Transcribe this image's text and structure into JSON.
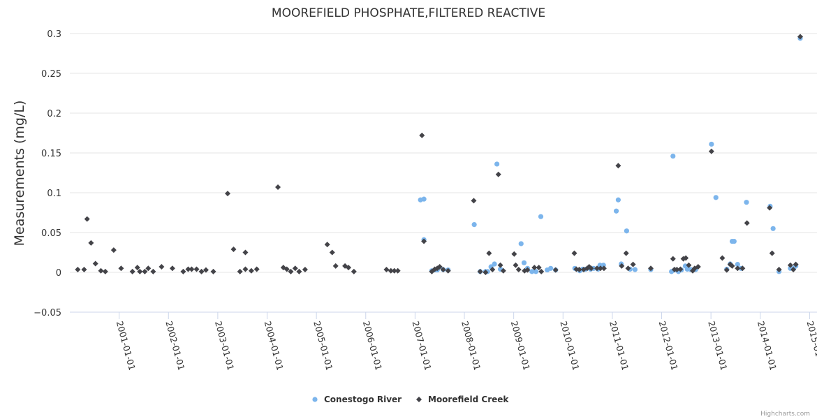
{
  "chart_data": {
    "type": "scatter",
    "title": "MOOREFIELD PHOSPHATE,FILTERED REACTIVE",
    "xlabel": "",
    "ylabel": "Measurements (mg/L)",
    "x_units": "decimal year",
    "xlim": [
      2000.0,
      2015.15
    ],
    "ylim": [
      -0.05,
      0.3
    ],
    "y_ticks": [
      -0.05,
      0,
      0.05,
      0.1,
      0.15,
      0.2,
      0.25,
      0.3
    ],
    "y_tick_labels": [
      "−0.05",
      "0",
      "0.05",
      "0.1",
      "0.15",
      "0.2",
      "0.25",
      "0.3"
    ],
    "x_ticks": [
      2001,
      2002,
      2003,
      2004,
      2005,
      2006,
      2007,
      2008,
      2009,
      2010,
      2011,
      2012,
      2013,
      2014,
      2015
    ],
    "x_tick_labels": [
      "2001-01-01",
      "2002-01-01",
      "2003-01-01",
      "2004-01-01",
      "2005-01-01",
      "2006-01-01",
      "2007-01-01",
      "2008-01-01",
      "2009-01-01",
      "2010-01-01",
      "2011-01-01",
      "2012-01-01",
      "2013-01-01",
      "2014-01-01",
      "2015-01-01"
    ],
    "grid": "horizontal",
    "legend_position": "bottom-center",
    "series": [
      {
        "name": "Conestogo River",
        "color": "#7cb5ec",
        "marker": "circle",
        "points": [
          [
            2007.11,
            0.091
          ],
          [
            2007.18,
            0.092
          ],
          [
            2007.18,
            0.041
          ],
          [
            2007.34,
            0.002
          ],
          [
            2007.4,
            0.003
          ],
          [
            2007.45,
            0.003
          ],
          [
            2007.57,
            0.0035
          ],
          [
            2007.67,
            0.003
          ],
          [
            2008.2,
            0.06
          ],
          [
            2008.32,
            0.001
          ],
          [
            2008.43,
            0.001
          ],
          [
            2008.47,
            0.001
          ],
          [
            2008.54,
            0.007
          ],
          [
            2008.61,
            0.0105
          ],
          [
            2008.66,
            0.136
          ],
          [
            2008.73,
            0.004
          ],
          [
            2009.15,
            0.036
          ],
          [
            2009.21,
            0.012
          ],
          [
            2009.28,
            0.005
          ],
          [
            2009.37,
            0.001
          ],
          [
            2009.45,
            0.001
          ],
          [
            2009.55,
            0.07
          ],
          [
            2009.68,
            0.003
          ],
          [
            2009.75,
            0.005
          ],
          [
            2009.85,
            0.003
          ],
          [
            2010.24,
            0.005
          ],
          [
            2010.34,
            0.002
          ],
          [
            2010.4,
            0.004
          ],
          [
            2010.46,
            0.004
          ],
          [
            2010.56,
            0.004
          ],
          [
            2010.62,
            0.005
          ],
          [
            2010.71,
            0.004
          ],
          [
            2010.75,
            0.009
          ],
          [
            2010.82,
            0.009
          ],
          [
            2011.08,
            0.077
          ],
          [
            2011.12,
            0.091
          ],
          [
            2011.18,
            0.0105
          ],
          [
            2011.29,
            0.052
          ],
          [
            2011.36,
            0.004
          ],
          [
            2011.46,
            0.0035
          ],
          [
            2011.78,
            0.0035
          ],
          [
            2012.2,
            0.001
          ],
          [
            2012.23,
            0.146
          ],
          [
            2012.26,
            0.003
          ],
          [
            2012.34,
            0.001
          ],
          [
            2012.4,
            0.003
          ],
          [
            2012.48,
            0.008
          ],
          [
            2012.52,
            0.004
          ],
          [
            2012.59,
            0.0035
          ],
          [
            2012.69,
            0.0035
          ],
          [
            2013.01,
            0.161
          ],
          [
            2013.1,
            0.094
          ],
          [
            2013.32,
            0.004
          ],
          [
            2013.39,
            0.0105
          ],
          [
            2013.43,
            0.039
          ],
          [
            2013.47,
            0.039
          ],
          [
            2013.54,
            0.01
          ],
          [
            2013.61,
            0.005
          ],
          [
            2013.72,
            0.088
          ],
          [
            2014.2,
            0.083
          ],
          [
            2014.26,
            0.055
          ],
          [
            2014.38,
            0.001
          ],
          [
            2014.61,
            0.005
          ],
          [
            2014.68,
            0.005
          ],
          [
            2014.72,
            0.008
          ],
          [
            2014.81,
            0.294
          ]
        ]
      },
      {
        "name": "Moorefield Creek",
        "color": "#434348",
        "marker": "diamond",
        "points": [
          [
            2000.16,
            0.0035
          ],
          [
            2000.29,
            0.0035
          ],
          [
            2000.35,
            0.067
          ],
          [
            2000.43,
            0.037
          ],
          [
            2000.52,
            0.011
          ],
          [
            2000.63,
            0.002
          ],
          [
            2000.72,
            0.001
          ],
          [
            2000.89,
            0.028
          ],
          [
            2001.04,
            0.005
          ],
          [
            2001.27,
            0.001
          ],
          [
            2001.37,
            0.006
          ],
          [
            2001.42,
            0.001
          ],
          [
            2001.52,
            0.001
          ],
          [
            2001.59,
            0.005
          ],
          [
            2001.69,
            0.001
          ],
          [
            2001.86,
            0.007
          ],
          [
            2002.08,
            0.005
          ],
          [
            2002.3,
            0.001
          ],
          [
            2002.4,
            0.004
          ],
          [
            2002.47,
            0.004
          ],
          [
            2002.57,
            0.004
          ],
          [
            2002.67,
            0.001
          ],
          [
            2002.76,
            0.003
          ],
          [
            2002.91,
            0.001
          ],
          [
            2003.2,
            0.099
          ],
          [
            2003.32,
            0.029
          ],
          [
            2003.45,
            0.001
          ],
          [
            2003.56,
            0.004
          ],
          [
            2003.56,
            0.025
          ],
          [
            2003.68,
            0.002
          ],
          [
            2003.79,
            0.004
          ],
          [
            2004.22,
            0.107
          ],
          [
            2004.33,
            0.006
          ],
          [
            2004.4,
            0.004
          ],
          [
            2004.48,
            0.001
          ],
          [
            2004.57,
            0.005
          ],
          [
            2004.65,
            0.001
          ],
          [
            2004.77,
            0.0035
          ],
          [
            2005.22,
            0.035
          ],
          [
            2005.32,
            0.025
          ],
          [
            2005.39,
            0.008
          ],
          [
            2005.58,
            0.008
          ],
          [
            2005.65,
            0.006
          ],
          [
            2005.76,
            0.001
          ],
          [
            2006.42,
            0.0035
          ],
          [
            2006.51,
            0.002
          ],
          [
            2006.58,
            0.002
          ],
          [
            2006.65,
            0.002
          ],
          [
            2007.14,
            0.172
          ],
          [
            2007.18,
            0.039
          ],
          [
            2007.34,
            0.001
          ],
          [
            2007.4,
            0.004
          ],
          [
            2007.45,
            0.005
          ],
          [
            2007.5,
            0.007
          ],
          [
            2007.57,
            0.0035
          ],
          [
            2007.67,
            0.002
          ],
          [
            2008.19,
            0.09
          ],
          [
            2008.32,
            0.001
          ],
          [
            2008.43,
            0
          ],
          [
            2008.5,
            0.024
          ],
          [
            2008.57,
            0.0035
          ],
          [
            2008.69,
            0.123
          ],
          [
            2008.73,
            0.009
          ],
          [
            2008.79,
            0.002
          ],
          [
            2009.01,
            0.023
          ],
          [
            2009.04,
            0.009
          ],
          [
            2009.1,
            0.0035
          ],
          [
            2009.22,
            0.002
          ],
          [
            2009.28,
            0.003
          ],
          [
            2009.42,
            0.006
          ],
          [
            2009.51,
            0.006
          ],
          [
            2009.56,
            0.001
          ],
          [
            2009.85,
            0.003
          ],
          [
            2010.23,
            0.024
          ],
          [
            2010.27,
            0.004
          ],
          [
            2010.33,
            0.0035
          ],
          [
            2010.42,
            0.0035
          ],
          [
            2010.49,
            0.005
          ],
          [
            2010.53,
            0.007
          ],
          [
            2010.57,
            0.005
          ],
          [
            2010.69,
            0.005
          ],
          [
            2010.76,
            0.005
          ],
          [
            2010.83,
            0.005
          ],
          [
            2011.12,
            0.134
          ],
          [
            2011.19,
            0.008
          ],
          [
            2011.28,
            0.024
          ],
          [
            2011.32,
            0.005
          ],
          [
            2011.42,
            0.01
          ],
          [
            2011.78,
            0.005
          ],
          [
            2012.23,
            0.017
          ],
          [
            2012.26,
            0.0035
          ],
          [
            2012.31,
            0.0035
          ],
          [
            2012.38,
            0.004
          ],
          [
            2012.44,
            0.017
          ],
          [
            2012.49,
            0.018
          ],
          [
            2012.55,
            0.009
          ],
          [
            2012.63,
            0.002
          ],
          [
            2012.67,
            0.005
          ],
          [
            2012.74,
            0.007
          ],
          [
            2013.01,
            0.152
          ],
          [
            2013.23,
            0.018
          ],
          [
            2013.32,
            0.003
          ],
          [
            2013.39,
            0.01
          ],
          [
            2013.43,
            0.008
          ],
          [
            2013.54,
            0.005
          ],
          [
            2013.64,
            0.005
          ],
          [
            2013.73,
            0.062
          ],
          [
            2014.19,
            0.081
          ],
          [
            2014.24,
            0.024
          ],
          [
            2014.38,
            0.0035
          ],
          [
            2014.61,
            0.009
          ],
          [
            2014.67,
            0.0035
          ],
          [
            2014.72,
            0.01
          ],
          [
            2014.81,
            0.296
          ]
        ]
      }
    ]
  },
  "credits": "Highcharts.com"
}
